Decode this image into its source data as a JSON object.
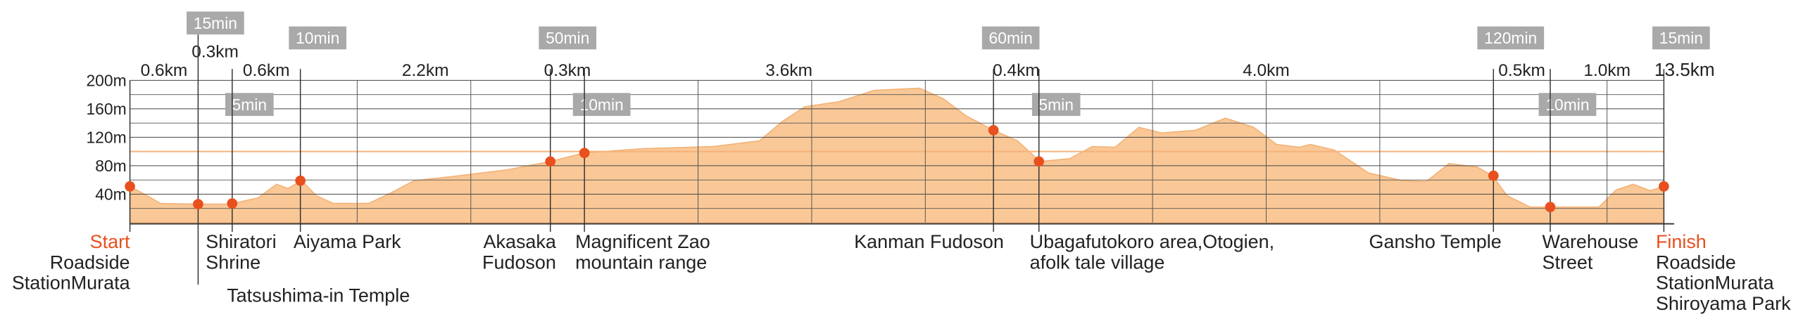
{
  "chart_data": {
    "type": "elevation",
    "ylim": [
      0,
      200
    ],
    "yticks": [
      {
        "value": 40,
        "label": "40m"
      },
      {
        "value": 80,
        "label": "80m"
      },
      {
        "value": 120,
        "label": "120m"
      },
      {
        "value": 160,
        "label": "160m"
      },
      {
        "value": 200,
        "label": "200m"
      }
    ],
    "minor_yticks": [
      20,
      60,
      100,
      140,
      180
    ],
    "reference_line": 100,
    "reference_color": "#f6b27a",
    "xlim": [
      0,
      13.5
    ],
    "xticks": [
      2,
      3,
      5,
      6,
      7,
      9,
      10,
      11,
      13
    ],
    "total_distance": 13.5,
    "total_distance_label": "13.5km",
    "fill_color": "#fac896",
    "line_color": "#f2b277",
    "dot_color": "#e8501e",
    "profile": {
      "x": [
        0,
        0.15,
        0.27,
        0.58,
        0.88,
        1.13,
        1.29,
        1.39,
        1.51,
        1.64,
        1.79,
        2.1,
        2.3,
        2.5,
        2.9,
        3.31,
        3.7,
        4.0,
        4.52,
        5.13,
        5.54,
        5.74,
        5.94,
        6.24,
        6.55,
        6.95,
        7.16,
        7.36,
        7.6,
        7.81,
        8.01,
        8.27,
        8.47,
        8.67,
        8.88,
        9.08,
        9.38,
        9.64,
        9.89,
        10.09,
        10.29,
        10.39,
        10.6,
        10.9,
        11.2,
        11.41,
        11.61,
        11.86,
        11.99,
        12.12,
        12.32,
        12.49,
        12.93,
        13.08,
        13.23,
        13.38,
        13.5
      ],
      "values": [
        51,
        38,
        27,
        26,
        26,
        35,
        54,
        48,
        59,
        38,
        27,
        27,
        42,
        59,
        66,
        74,
        86,
        98,
        104,
        107,
        115,
        142,
        163,
        170,
        186,
        189,
        174,
        150,
        130,
        115,
        86,
        90,
        107,
        106,
        134,
        126,
        130,
        147,
        134,
        110,
        106,
        110,
        102,
        70,
        59,
        58,
        83,
        78,
        66,
        38,
        22,
        22,
        22,
        46,
        54,
        45,
        51
      ]
    },
    "waypoints": [
      {
        "tag": "Start",
        "name_lines": [
          "Roadside",
          "StationMurata"
        ],
        "elevation": 51
      },
      {
        "name_lines": [
          "Tatsushima-in Temple"
        ],
        "elevation": 26
      },
      {
        "name_lines": [
          "Shiratori",
          "Shrine"
        ],
        "elevation": 27
      },
      {
        "name_lines": [
          "Aiyama Park"
        ],
        "elevation": 59
      },
      {
        "name_lines": [
          "Akasaka",
          "Fudoson"
        ],
        "elevation": 86
      },
      {
        "name_lines": [
          "Magnificent Zao",
          "mountain range"
        ],
        "elevation": 98
      },
      {
        "name_lines": [
          "Kanman Fudoson"
        ],
        "elevation": 130
      },
      {
        "name_lines": [
          "Ubagafutokoro area,Otogien,",
          "afolk tale village"
        ],
        "elevation": 86
      },
      {
        "name_lines": [
          "Gansho Temple"
        ],
        "elevation": 66
      },
      {
        "name_lines": [
          "Warehouse",
          "Street"
        ],
        "elevation": 22
      },
      {
        "tag": "Finish",
        "name_lines": [
          "Roadside",
          "StationMurata",
          "Shiroyama Park"
        ],
        "elevation": 51
      }
    ],
    "segments": [
      {
        "distance": 0.6,
        "distance_label": "0.6km",
        "time_label": "15min"
      },
      {
        "distance": 0.3,
        "distance_label": "0.3km",
        "time_label": "5min"
      },
      {
        "distance": 0.6,
        "distance_label": "0.6km",
        "time_label": "10min"
      },
      {
        "distance": 2.2,
        "distance_label": "2.2km",
        "time_label": "50min"
      },
      {
        "distance": 0.3,
        "distance_label": "0.3km",
        "time_label": "10min"
      },
      {
        "distance": 3.6,
        "distance_label": "3.6km",
        "time_label": "60min"
      },
      {
        "distance": 0.4,
        "distance_label": "0.4km",
        "time_label": "5min"
      },
      {
        "distance": 4.0,
        "distance_label": "4.0km",
        "time_label": "120min"
      },
      {
        "distance": 0.5,
        "distance_label": "0.5km",
        "time_label": "10min"
      },
      {
        "distance": 1.0,
        "distance_label": "1.0km",
        "time_label": "15min"
      }
    ]
  }
}
